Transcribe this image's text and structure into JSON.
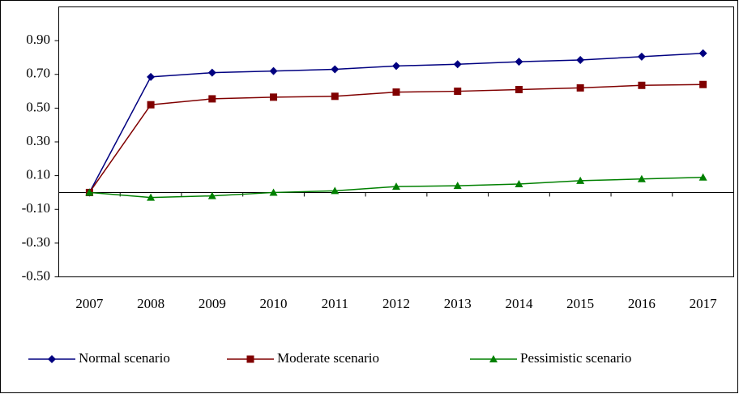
{
  "chart_data": {
    "type": "line",
    "categories": [
      "2007",
      "2008",
      "2009",
      "2010",
      "2011",
      "2012",
      "2013",
      "2014",
      "2015",
      "2016",
      "2017"
    ],
    "series": [
      {
        "name": "Normal scenario",
        "color": "#000080",
        "marker": "diamond",
        "values": [
          0.0,
          0.685,
          0.71,
          0.72,
          0.73,
          0.75,
          0.76,
          0.775,
          0.785,
          0.805,
          0.825
        ]
      },
      {
        "name": "Moderate scenario",
        "color": "#800000",
        "marker": "square",
        "values": [
          0.0,
          0.52,
          0.555,
          0.565,
          0.57,
          0.595,
          0.6,
          0.61,
          0.62,
          0.635,
          0.64
        ]
      },
      {
        "name": "Pessimistic scenario",
        "color": "#008000",
        "marker": "triangle",
        "values": [
          0.0,
          -0.03,
          -0.02,
          0.0,
          0.01,
          0.035,
          0.04,
          0.05,
          0.07,
          0.08,
          0.09
        ]
      }
    ],
    "ylim": [
      -0.5,
      1.1
    ],
    "yticks": [
      {
        "value": -0.5,
        "label": "-0.50"
      },
      {
        "value": -0.3,
        "label": "-0.30"
      },
      {
        "value": -0.1,
        "label": "-0.10"
      },
      {
        "value": 0.1,
        "label": "0.10"
      },
      {
        "value": 0.3,
        "label": "0.30"
      },
      {
        "value": 0.5,
        "label": "0.50"
      },
      {
        "value": 0.7,
        "label": "0.70"
      },
      {
        "value": 0.9,
        "label": "0.90"
      }
    ],
    "legend": "bottom"
  }
}
